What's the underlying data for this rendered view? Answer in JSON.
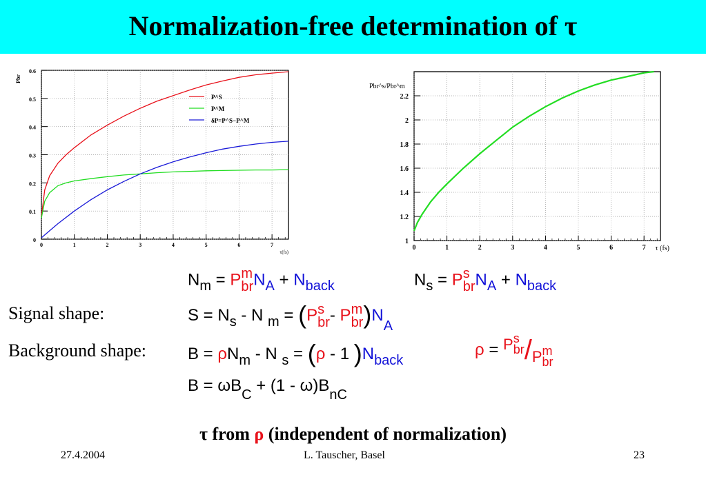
{
  "slide": {
    "title": "Normalization-free determination of τ",
    "signal_label": "Signal shape:",
    "background_label": "Background shape:",
    "conclusion": {
      "tau": "τ",
      "from": " from ",
      "rho": "ρ",
      "rest": " (independent of normalization)"
    },
    "footer": {
      "date": "27.4.2004",
      "author": "L. Tauscher, Basel",
      "page": "23"
    }
  },
  "equations": {
    "nm": {
      "N": "N",
      "m": "m",
      "eq": " = ",
      "P": "P",
      "sup": "m",
      "sub": "br",
      "N2": "N",
      "A": "A",
      "plus": " + ",
      "Nb": "N",
      "back": "back"
    },
    "ns": {
      "N": "N",
      "s": "s",
      "eq": " = ",
      "P": "P",
      "sup": "s",
      "sub": "br",
      "N2": "N",
      "A": "A",
      "plus": " + ",
      "Nb": "N",
      "back": "back"
    },
    "signal": {
      "lhs": "S = N",
      "s": "s",
      "minus": " - N ",
      "m": "m",
      "eq": " = ",
      "P1": "P",
      "s1": "s",
      "br1": "br",
      "dash": "- ",
      "P2": "P",
      "m2": "m",
      "br2": "br",
      "N": "N",
      "A": "A"
    },
    "background": {
      "lhs": "B = ",
      "rho": "ρ",
      "N": "N",
      "m": "m",
      "minus": " - N ",
      "s": "s",
      "eq": " = ",
      "rho2": "ρ",
      "m1": " - 1 ",
      "Nb": "N",
      "back": "back"
    },
    "rho_def": {
      "rho": "ρ",
      "eq": " = ",
      "P1": "P",
      "s": "s",
      "br1": "br",
      "slash": "/",
      "P2": "P",
      "m": "m",
      "br2": "br"
    },
    "bc": {
      "lhs": "B = ",
      "w": "ω",
      "B": "B",
      "C": "C",
      "mid": " + (1 - ",
      "w2": "ω",
      "B2": ")B",
      "nC": "nC"
    }
  },
  "chart_data": [
    {
      "type": "line",
      "xlabel": "τ(fs)",
      "ylabel": "Pbr",
      "xlim": [
        0,
        7.5
      ],
      "ylim": [
        0,
        0.6
      ],
      "x_ticks": [
        "0",
        "1",
        "2",
        "3",
        "4",
        "5",
        "6",
        "7"
      ],
      "y_ticks": [
        "0",
        "0.1",
        "0.2",
        "0.3",
        "0.4",
        "0.5",
        "0.6"
      ],
      "legend": [
        "P^S",
        "P^M",
        "δP=P^S−P^M"
      ],
      "legend_position": "top-right",
      "series": [
        {
          "name": "P^S",
          "color": "#e8121b",
          "x": [
            0,
            0.1,
            0.25,
            0.5,
            0.75,
            1,
            1.5,
            2,
            2.5,
            3,
            3.5,
            4,
            4.5,
            5,
            5.5,
            6,
            6.5,
            7,
            7.5
          ],
          "values": [
            0.08,
            0.175,
            0.225,
            0.27,
            0.3,
            0.325,
            0.37,
            0.405,
            0.437,
            0.465,
            0.49,
            0.51,
            0.53,
            0.548,
            0.562,
            0.575,
            0.584,
            0.59,
            0.595
          ]
        },
        {
          "name": "P^M",
          "color": "#22dd22",
          "x": [
            0,
            0.1,
            0.25,
            0.5,
            0.75,
            1,
            1.5,
            2,
            2.5,
            3,
            3.5,
            4,
            4.5,
            5,
            5.5,
            6,
            6.5,
            7,
            7.5
          ],
          "values": [
            0.075,
            0.135,
            0.165,
            0.19,
            0.2,
            0.207,
            0.215,
            0.222,
            0.228,
            0.232,
            0.236,
            0.239,
            0.241,
            0.243,
            0.244,
            0.245,
            0.246,
            0.246,
            0.247
          ]
        },
        {
          "name": "δP=P^S−P^M",
          "color": "#1a1ad8",
          "x": [
            0,
            0.25,
            0.5,
            1,
            1.5,
            2,
            2.5,
            3,
            3.5,
            4,
            4.5,
            5,
            5.5,
            6,
            6.5,
            7,
            7.5
          ],
          "values": [
            0.005,
            0.03,
            0.055,
            0.1,
            0.14,
            0.175,
            0.205,
            0.232,
            0.255,
            0.275,
            0.292,
            0.307,
            0.32,
            0.33,
            0.338,
            0.344,
            0.348
          ]
        }
      ]
    },
    {
      "type": "line",
      "xlabel": "τ (fs)",
      "ylabel": "Pbr^s/Pbr^m",
      "xlim": [
        0,
        7.5
      ],
      "ylim": [
        1,
        2.4
      ],
      "x_ticks": [
        "0",
        "1",
        "2",
        "3",
        "4",
        "5",
        "6",
        "7"
      ],
      "y_ticks": [
        "1",
        "1.2",
        "1.4",
        "1.6",
        "1.8",
        "2",
        "2.2"
      ],
      "series": [
        {
          "name": "",
          "color": "#22dd22",
          "x": [
            0,
            0.1,
            0.25,
            0.5,
            0.75,
            1,
            1.5,
            2,
            2.5,
            3,
            3.5,
            4,
            4.5,
            5,
            5.5,
            6,
            6.5,
            7,
            7.3
          ],
          "values": [
            1.08,
            1.15,
            1.22,
            1.32,
            1.4,
            1.47,
            1.6,
            1.72,
            1.83,
            1.94,
            2.03,
            2.11,
            2.18,
            2.24,
            2.29,
            2.33,
            2.36,
            2.39,
            2.4
          ]
        }
      ]
    }
  ]
}
